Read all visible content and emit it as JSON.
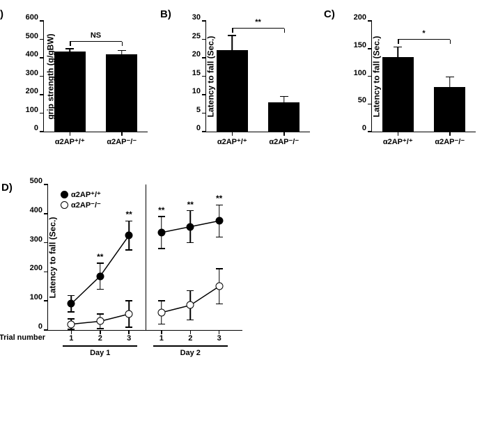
{
  "panels": {
    "A": {
      "label": ")",
      "ylabel": "grip strength (g/gBW)",
      "ylim": [
        0,
        600
      ],
      "ytick_step": 100,
      "categories": [
        "α2AP⁺/⁺",
        "α2AP⁻/⁻"
      ],
      "values": [
        435,
        420
      ],
      "errors": [
        15,
        20
      ],
      "sig_text": "NS",
      "bar_color": "#000000"
    },
    "B": {
      "label": "B)",
      "ylabel": "Latency to fall  (Sec.)",
      "ylim": [
        0,
        30
      ],
      "ytick_step": 5,
      "categories": [
        "α2AP⁺/⁺",
        "α2AP⁻/⁻"
      ],
      "values": [
        22,
        8
      ],
      "errors": [
        4,
        1.5
      ],
      "sig_text": "**",
      "bar_color": "#000000"
    },
    "C": {
      "label": "C)",
      "ylabel": "Latency to fall  (Sec.)",
      "ylim": [
        0,
        200
      ],
      "ytick_step": 50,
      "categories": [
        "α2AP⁺/⁺",
        "α2AP⁻/⁻"
      ],
      "values": [
        135,
        80
      ],
      "errors": [
        18,
        19
      ],
      "sig_text": "*",
      "bar_color": "#000000"
    },
    "D": {
      "label": "D)",
      "ylabel": "Latency to fall  (Sec.)",
      "ylim": [
        0,
        500
      ],
      "ytick_step": 100,
      "series": [
        {
          "name": "α2AP⁺/⁺",
          "marker": "filled",
          "y": [
            90,
            185,
            325,
            335,
            355,
            375
          ],
          "err": [
            28,
            45,
            50,
            55,
            55,
            55
          ],
          "sig": [
            "",
            "**",
            "**",
            "**",
            "**",
            "**"
          ]
        },
        {
          "name": "α2AP⁻/⁻",
          "marker": "open",
          "y": [
            20,
            30,
            55,
            60,
            85,
            150
          ],
          "err": [
            18,
            25,
            45,
            40,
            50,
            60
          ],
          "sig": [
            "",
            "",
            "",
            "",
            "",
            ""
          ]
        }
      ],
      "trial_title": "Trial number",
      "trials": [
        "1",
        "2",
        "3",
        "1",
        "2",
        "3"
      ],
      "days": [
        "Day 1",
        "Day 2"
      ]
    }
  }
}
